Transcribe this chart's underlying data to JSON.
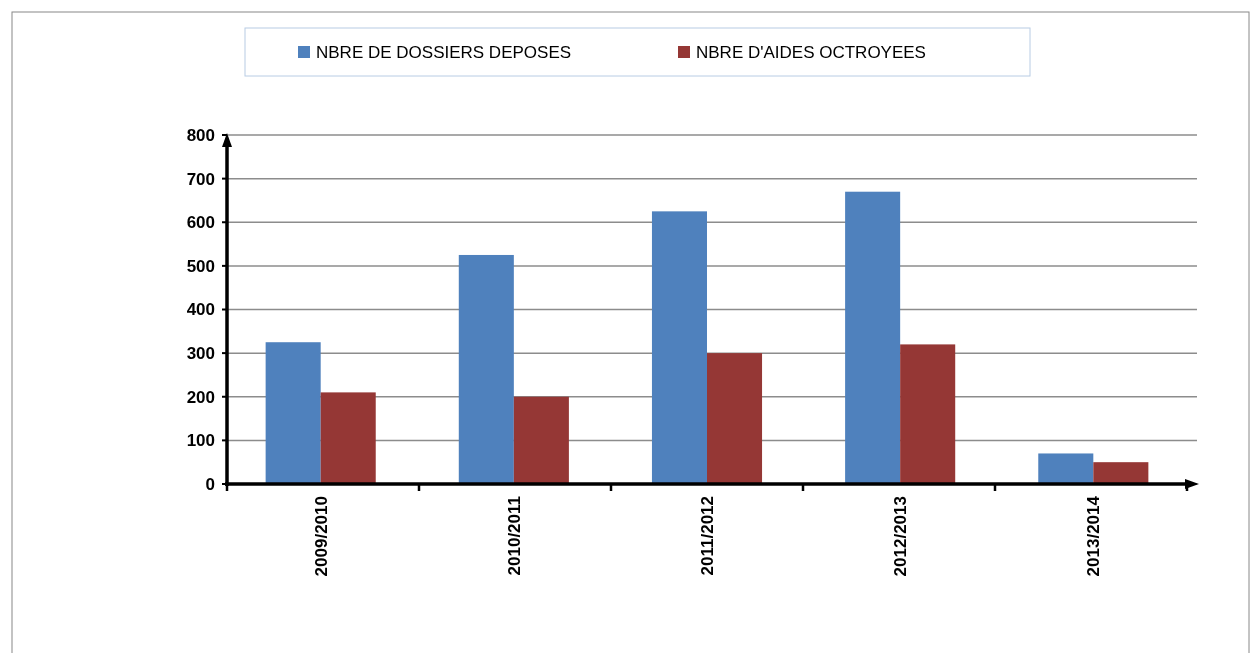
{
  "chart_data": {
    "type": "bar",
    "categories": [
      "2009/2010",
      "2010/2011",
      "2011/2012",
      "2012/2013",
      "2013/2014"
    ],
    "series": [
      {
        "name": "NBRE DE DOSSIERS DEPOSES",
        "color": "#4f81bd",
        "values": [
          325,
          525,
          625,
          670,
          70
        ]
      },
      {
        "name": "NBRE D'AIDES OCTROYEES",
        "color": "#953735",
        "values": [
          210,
          200,
          300,
          320,
          50
        ]
      }
    ],
    "ylim": [
      0,
      800
    ],
    "yticks": [
      0,
      100,
      200,
      300,
      400,
      500,
      600,
      700,
      800
    ],
    "grid": "y",
    "legend": "top"
  }
}
